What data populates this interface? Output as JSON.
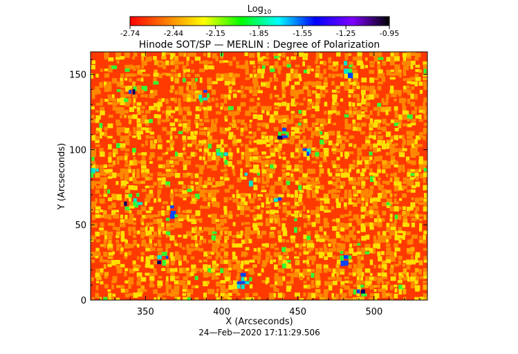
{
  "colorbar": {
    "label_base": "Log",
    "label_sub": "10",
    "ticks": [
      "-2.74",
      "-2.44",
      "-2.15",
      "-1.85",
      "-1.55",
      "-1.25",
      "-0.95"
    ],
    "range": [
      -2.74,
      -0.95
    ],
    "colormap": [
      "#ff0000",
      "#ff7f00",
      "#ffff00",
      "#00ff00",
      "#00ffff",
      "#0000ff",
      "#7f00ff",
      "#000000"
    ]
  },
  "chart_data": {
    "type": "heatmap",
    "title": "Hinode SOT/SP — MERLIN : Degree of Polarization",
    "xlabel": "X (Arcseconds)",
    "ylabel": "Y (Arcseconds)",
    "xlim": [
      314,
      535
    ],
    "ylim": [
      0,
      165
    ],
    "xticks": [
      350,
      400,
      450,
      500
    ],
    "yticks": [
      0,
      50,
      100,
      150
    ],
    "grid": false,
    "value_range": [
      -2.74,
      -0.95
    ],
    "dominant_colors": [
      "#ff3300",
      "#ff8800",
      "#ffe000"
    ],
    "feature_colors": [
      "#33ff33",
      "#00e5cc",
      "#0044ff",
      "#000066"
    ],
    "enhanced_regions": [
      {
        "x": 316,
        "y": 88
      },
      {
        "x": 340,
        "y": 68
      },
      {
        "x": 365,
        "y": 60
      },
      {
        "x": 386,
        "y": 135
      },
      {
        "x": 400,
        "y": 98
      },
      {
        "x": 418,
        "y": 80
      },
      {
        "x": 437,
        "y": 68
      },
      {
        "x": 440,
        "y": 112
      },
      {
        "x": 458,
        "y": 100
      },
      {
        "x": 484,
        "y": 155
      },
      {
        "x": 480,
        "y": 30
      },
      {
        "x": 490,
        "y": 8
      },
      {
        "x": 342,
        "y": 142
      },
      {
        "x": 360,
        "y": 30
      },
      {
        "x": 410,
        "y": 14
      }
    ]
  },
  "timestamp": "24—Feb—2020 17:11:29.506"
}
